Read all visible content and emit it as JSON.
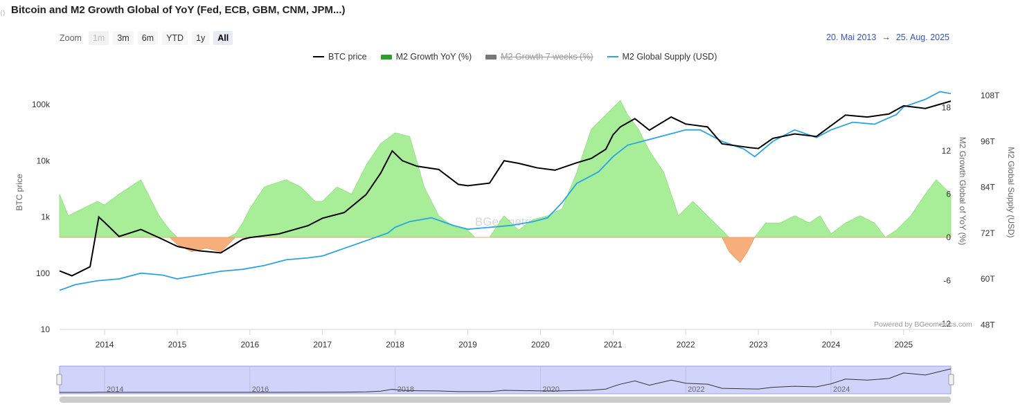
{
  "header": {
    "title": "Bitcoin and M2 Growth Global of YoY (Fed, ECB, GBM, CNM, JPM...)"
  },
  "toolbar": {
    "zoom_label": "Zoom",
    "buttons": [
      {
        "label": "1m",
        "state": "disabled"
      },
      {
        "label": "3m",
        "state": "normal"
      },
      {
        "label": "6m",
        "state": "normal"
      },
      {
        "label": "YTD",
        "state": "normal"
      },
      {
        "label": "1y",
        "state": "normal"
      },
      {
        "label": "All",
        "state": "active"
      }
    ]
  },
  "range": {
    "from": "20. Mai 2013",
    "arrow": "→",
    "to": "25. Aug. 2025"
  },
  "legend": [
    {
      "label": "BTC price",
      "color": "#000000",
      "kind": "line",
      "hidden": false
    },
    {
      "label": "M2 Growth YoY (%)",
      "color": "#2ca02c",
      "kind": "bar",
      "hidden": false
    },
    {
      "label": "M2 Growth 7 weeks (%)",
      "color": "#777777",
      "kind": "bar",
      "hidden": true
    },
    {
      "label": "M2 Global Supply (USD)",
      "color": "#29a3e8",
      "kind": "line",
      "hidden": false
    }
  ],
  "credit": "Powered by BGeometrics.com",
  "watermark": "BGeometrics",
  "colors": {
    "positive_fill": "#a8ee98",
    "negative_fill": "#f5ae7c",
    "btc": "#000000",
    "m2": "#29a3e8",
    "navigator": "#d0d4fb"
  },
  "chart_data": {
    "type": "line",
    "x_axis": {
      "ticks": [
        "2014",
        "2015",
        "2016",
        "2017",
        "2018",
        "2019",
        "2020",
        "2021",
        "2022",
        "2023",
        "2024",
        "2025"
      ],
      "range": [
        "2013-05-20",
        "2025-08-25"
      ]
    },
    "y_left": {
      "label": "BTC price",
      "scale": "log",
      "ticks": [
        "10",
        "100",
        "1k",
        "10k",
        "100k"
      ],
      "range": [
        10,
        320000
      ]
    },
    "y_mid": {
      "label": "M2 Growth Global of YoY (%)",
      "ticks": [
        "-12",
        "-6",
        "0",
        "6",
        "12",
        "18"
      ],
      "range": [
        -12,
        18
      ]
    },
    "y_right": {
      "label": "M2 Global Supply (USD)",
      "ticks": [
        "48T",
        "60T",
        "72T",
        "84T",
        "96T",
        "108T"
      ],
      "range": [
        48,
        108
      ]
    },
    "series": [
      {
        "name": "BTC price",
        "axis": "left",
        "x": [
          2013.38,
          2013.55,
          2013.8,
          2013.92,
          2014.0,
          2014.2,
          2014.5,
          2014.8,
          2015.0,
          2015.3,
          2015.6,
          2015.9,
          2016.0,
          2016.4,
          2016.8,
          2017.0,
          2017.3,
          2017.6,
          2017.8,
          2017.96,
          2018.1,
          2018.3,
          2018.6,
          2018.87,
          2019.0,
          2019.3,
          2019.5,
          2019.7,
          2019.95,
          2020.2,
          2020.5,
          2020.7,
          2020.9,
          2021.0,
          2021.1,
          2021.3,
          2021.5,
          2021.8,
          2022.0,
          2022.3,
          2022.5,
          2022.9,
          2023.0,
          2023.2,
          2023.5,
          2023.8,
          2024.0,
          2024.2,
          2024.5,
          2024.8,
          2025.0,
          2025.3,
          2025.65
        ],
        "values": [
          110,
          90,
          130,
          1000,
          800,
          450,
          600,
          400,
          300,
          250,
          230,
          400,
          430,
          500,
          700,
          950,
          1200,
          2500,
          6000,
          15000,
          10000,
          8000,
          7000,
          3800,
          3600,
          4000,
          10000,
          9000,
          7500,
          6800,
          9200,
          11000,
          16000,
          29000,
          40000,
          56000,
          35000,
          60000,
          45000,
          40000,
          20000,
          17000,
          16500,
          25000,
          30000,
          27000,
          42000,
          65000,
          60000,
          68000,
          95000,
          85000,
          115000
        ]
      },
      {
        "name": "M2 Growth YoY (%)",
        "axis": "mid",
        "x": [
          2013.38,
          2013.5,
          2013.7,
          2013.9,
          2014.0,
          2014.2,
          2014.5,
          2014.75,
          2014.9,
          2015.0,
          2015.2,
          2015.4,
          2015.6,
          2015.7,
          2015.8,
          2015.9,
          2016.0,
          2016.2,
          2016.5,
          2016.7,
          2016.9,
          2017.0,
          2017.2,
          2017.4,
          2017.6,
          2017.8,
          2018.0,
          2018.2,
          2018.4,
          2018.6,
          2018.8,
          2019.0,
          2019.1,
          2019.3,
          2019.5,
          2019.7,
          2019.9,
          2020.1,
          2020.3,
          2020.5,
          2020.7,
          2020.9,
          2021.0,
          2021.1,
          2021.2,
          2021.35,
          2021.5,
          2021.7,
          2021.9,
          2022.1,
          2022.3,
          2022.5,
          2022.6,
          2022.75,
          2022.85,
          2022.95,
          2023.1,
          2023.3,
          2023.5,
          2023.7,
          2023.85,
          2024.0,
          2024.2,
          2024.4,
          2024.6,
          2024.75,
          2024.9,
          2025.1,
          2025.3,
          2025.45,
          2025.65
        ],
        "values": [
          6,
          3,
          4,
          5,
          4.5,
          6,
          8,
          3,
          1,
          -1,
          -2,
          -1.5,
          -2,
          -1,
          0.5,
          2,
          4,
          7,
          8,
          7,
          5,
          5,
          7,
          6,
          10,
          13,
          14.5,
          14,
          7,
          3,
          1.5,
          1,
          0,
          0,
          3,
          1,
          2.5,
          3,
          4,
          9,
          15,
          17,
          18,
          19,
          17,
          15,
          12,
          9,
          3,
          5,
          3,
          1,
          -2,
          -3.5,
          -2,
          0,
          2,
          2,
          3,
          2,
          3,
          0.5,
          2,
          3,
          2,
          0,
          1,
          3,
          6,
          8,
          6
        ]
      },
      {
        "name": "M2 Global Supply (USD)",
        "axis": "right",
        "x": [
          2013.38,
          2013.6,
          2013.9,
          2014.2,
          2014.5,
          2014.8,
          2015.0,
          2015.3,
          2015.6,
          2015.9,
          2016.2,
          2016.5,
          2016.8,
          2017.0,
          2017.3,
          2017.6,
          2017.9,
          2018.0,
          2018.2,
          2018.5,
          2018.8,
          2019.0,
          2019.3,
          2019.6,
          2019.9,
          2020.1,
          2020.3,
          2020.5,
          2020.8,
          2021.0,
          2021.2,
          2021.5,
          2021.8,
          2022.0,
          2022.2,
          2022.5,
          2022.8,
          2022.95,
          2023.2,
          2023.5,
          2023.8,
          2024.0,
          2024.3,
          2024.6,
          2024.9,
          2025.0,
          2025.3,
          2025.5,
          2025.65
        ],
        "values": [
          57,
          58.5,
          59.5,
          60,
          61.5,
          61,
          60,
          61,
          62,
          62.5,
          63.5,
          65,
          65.5,
          66,
          68,
          70,
          72,
          73.5,
          75,
          76,
          74,
          73,
          73.5,
          74,
          75,
          76,
          80,
          85,
          88,
          92,
          95,
          96.5,
          98,
          99,
          99,
          96,
          94,
          92,
          96,
          99,
          97,
          99,
          101,
          100.5,
          103,
          105,
          107,
          109,
          108.5
        ]
      }
    ]
  }
}
